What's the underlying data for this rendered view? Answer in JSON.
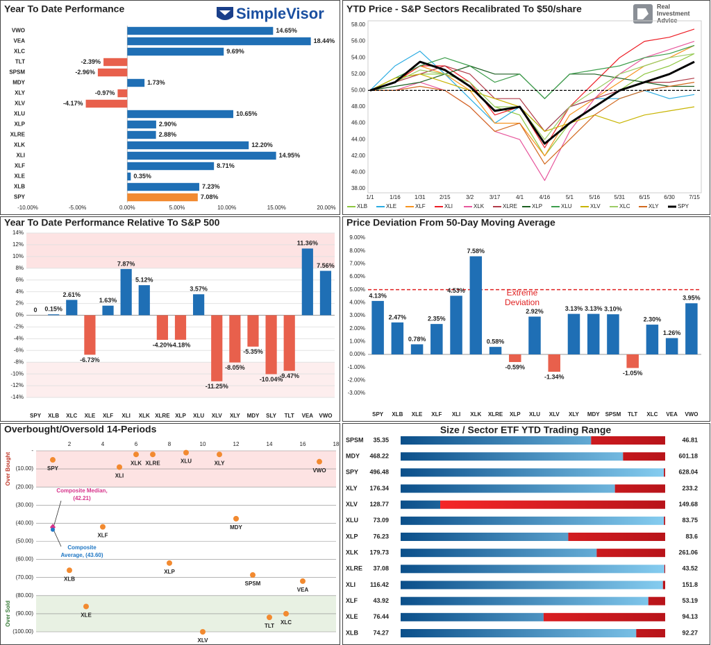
{
  "logos": {
    "simplevisor": "SimpleVisor",
    "ria": [
      "Real",
      "Investment",
      "Advice"
    ]
  },
  "chart_data": [
    {
      "type": "bar",
      "horizontal": true,
      "title": "Year To Date Performance",
      "categories": [
        "VWO",
        "VEA",
        "XLC",
        "TLT",
        "SPSM",
        "MDY",
        "XLY",
        "XLV",
        "XLU",
        "XLP",
        "XLRE",
        "XLK",
        "XLI",
        "XLF",
        "XLE",
        "XLB",
        "SPY"
      ],
      "values": [
        14.65,
        18.44,
        9.69,
        -2.39,
        -2.96,
        1.73,
        -0.97,
        -4.17,
        10.65,
        2.9,
        2.88,
        12.2,
        14.95,
        8.71,
        0.35,
        7.23,
        7.08
      ],
      "value_labels": [
        "14.65%",
        "18.44%",
        "9.69%",
        "-2.39%",
        "-2.96%",
        "1.73%",
        "-0.97%",
        "-4.17%",
        "10.65%",
        "2.90%",
        "2.88%",
        "12.20%",
        "14.95%",
        "8.71%",
        "0.35%",
        "7.23%",
        "7.08%"
      ],
      "colors": [
        "#1f6fb5",
        "#1f6fb5",
        "#1f6fb5",
        "#e8604c",
        "#e8604c",
        "#1f6fb5",
        "#e8604c",
        "#e8604c",
        "#1f6fb5",
        "#1f6fb5",
        "#1f6fb5",
        "#1f6fb5",
        "#1f6fb5",
        "#1f6fb5",
        "#1f6fb5",
        "#1f6fb5",
        "#f28a30"
      ],
      "xlim": [
        -10,
        20
      ],
      "xticks": [
        {
          "value": -10,
          "label": "-10.00%"
        },
        {
          "value": -5,
          "label": "-5.00%"
        },
        {
          "value": 0,
          "label": "0.00%"
        },
        {
          "value": 5,
          "label": "5.00%"
        },
        {
          "value": 10,
          "label": "10.00%"
        },
        {
          "value": 15,
          "label": "15.00%"
        },
        {
          "value": 20,
          "label": "20.00%"
        }
      ],
      "grid": false
    },
    {
      "type": "line",
      "title": "YTD Price - S&P Sectors Recalibrated To $50/share",
      "categories": [
        "1/1",
        "1/16",
        "1/31",
        "2/15",
        "3/2",
        "3/17",
        "4/1",
        "4/16",
        "5/1",
        "5/16",
        "5/31",
        "6/15",
        "6/30",
        "7/15"
      ],
      "ylim": [
        38,
        58
      ],
      "yticks": [
        {
          "value": 38,
          "label": "38.00"
        },
        {
          "value": 40,
          "label": "40.00"
        },
        {
          "value": 42,
          "label": "42.00"
        },
        {
          "value": 44,
          "label": "44.00"
        },
        {
          "value": 46,
          "label": "46.00"
        },
        {
          "value": 48,
          "label": "48.00"
        },
        {
          "value": 50,
          "label": "50.00"
        },
        {
          "value": 52,
          "label": "52.00"
        },
        {
          "value": 54,
          "label": "54.00"
        },
        {
          "value": 56,
          "label": "56.00"
        },
        {
          "value": 58,
          "label": "58.00"
        }
      ],
      "ref_line": 50,
      "grid": false,
      "series": [
        {
          "name": "XLB",
          "color": "#8dc63f",
          "width": 1.2,
          "values": [
            50,
            51.5,
            52,
            52,
            51,
            48,
            47,
            42,
            46,
            48,
            50,
            52,
            53,
            54.5
          ]
        },
        {
          "name": "XLE",
          "color": "#29abe2",
          "width": 1.2,
          "values": [
            50,
            53,
            54.8,
            52,
            49,
            46,
            48,
            45,
            48,
            49,
            49,
            50,
            49,
            49.5
          ]
        },
        {
          "name": "XLF",
          "color": "#f7931e",
          "width": 1.2,
          "values": [
            50,
            51,
            53,
            52,
            50,
            46,
            46,
            42,
            47,
            49,
            51,
            53,
            54,
            55.5
          ]
        },
        {
          "name": "XLI",
          "color": "#ed1c24",
          "width": 1.2,
          "values": [
            50,
            51,
            53,
            53,
            51,
            47,
            48,
            43,
            48,
            51,
            54,
            56,
            56.5,
            57.5
          ]
        },
        {
          "name": "XLK",
          "color": "#e7569c",
          "width": 1.2,
          "values": [
            50,
            50,
            51,
            50,
            48,
            45,
            44,
            39,
            45,
            49,
            52,
            54,
            55,
            56
          ]
        },
        {
          "name": "XLRE",
          "color": "#b03a48",
          "width": 1.2,
          "values": [
            50,
            51,
            52,
            53,
            52,
            49,
            49,
            45,
            48,
            49,
            50,
            51,
            51,
            51.5
          ]
        },
        {
          "name": "XLP",
          "color": "#1b5e20",
          "width": 1.2,
          "values": [
            50,
            50.5,
            51,
            52,
            53,
            52,
            52,
            49,
            52,
            52,
            51.5,
            51,
            50.5,
            50.5
          ]
        },
        {
          "name": "XLU",
          "color": "#3c9d4b",
          "width": 1.2,
          "values": [
            50,
            51.5,
            53,
            54,
            53,
            51,
            52,
            49,
            52,
            52.5,
            53,
            54,
            54.5,
            55.5
          ]
        },
        {
          "name": "XLV",
          "color": "#c8b400",
          "width": 1.2,
          "values": [
            50,
            51.5,
            52,
            51,
            50,
            49,
            48,
            45,
            46,
            47,
            46,
            47,
            47.5,
            48
          ]
        },
        {
          "name": "XLC",
          "color": "#9ccc65",
          "width": 1.2,
          "values": [
            50,
            51,
            52.5,
            52,
            51,
            48,
            48,
            44,
            48,
            50,
            52,
            53,
            54,
            54.5
          ]
        },
        {
          "name": "XLY",
          "color": "#d2691e",
          "width": 1.2,
          "values": [
            50,
            50,
            50.5,
            50,
            48,
            45,
            46,
            41,
            44,
            47,
            49,
            50,
            50.5,
            51
          ]
        },
        {
          "name": "SPY",
          "color": "#000000",
          "width": 3,
          "values": [
            50,
            51,
            53.5,
            52.5,
            50.5,
            47.5,
            48,
            43.5,
            46,
            48,
            50,
            51,
            52,
            53.5
          ]
        }
      ]
    },
    {
      "type": "bar",
      "title": "Year To Date Performance Relative To S&P 500",
      "categories": [
        "SPY",
        "XLB",
        "XLC",
        "XLE",
        "XLF",
        "XLI",
        "XLK",
        "XLRE",
        "XLP",
        "XLU",
        "XLV",
        "XLY",
        "MDY",
        "SLY",
        "TLT",
        "VEA",
        "VWO"
      ],
      "values": [
        0,
        0.15,
        2.61,
        -6.73,
        1.63,
        7.87,
        5.12,
        -4.2,
        -4.18,
        3.57,
        -11.25,
        -8.05,
        -5.35,
        -10.04,
        -9.47,
        11.36,
        7.56
      ],
      "value_labels": [
        "0",
        "0.15%",
        "2.61%",
        "-6.73%",
        "1.63%",
        "7.87%",
        "5.12%",
        "-4.20%",
        "-4.18%",
        "3.57%",
        "-11.25%",
        "-8.05%",
        "-5.35%",
        "-10.04%",
        "-9.47%",
        "11.36%",
        "7.56%"
      ],
      "color": "#1f6fb5",
      "negative_color": "#e8604c",
      "ylim": [
        -14,
        14
      ],
      "yticks": [
        {
          "value": -14,
          "label": "-14%"
        },
        {
          "value": -12,
          "label": "-12%"
        },
        {
          "value": -10,
          "label": "-10%"
        },
        {
          "value": -8,
          "label": "-8%"
        },
        {
          "value": -6,
          "label": "-6%"
        },
        {
          "value": -4,
          "label": "-4%"
        },
        {
          "value": -2,
          "label": "-2%"
        },
        {
          "value": 0,
          "label": "0%"
        },
        {
          "value": 2,
          "label": "2%"
        },
        {
          "value": 4,
          "label": "4%"
        },
        {
          "value": 6,
          "label": "6%"
        },
        {
          "value": 8,
          "label": "8%"
        },
        {
          "value": 10,
          "label": "10%"
        },
        {
          "value": 12,
          "label": "12%"
        },
        {
          "value": 14,
          "label": "14%"
        }
      ],
      "bands": [
        {
          "from": 8,
          "to": 14,
          "color": "#fde3e3"
        },
        {
          "from": -8,
          "to": -14,
          "color": "#fdeeee"
        }
      ],
      "grid": true
    },
    {
      "type": "bar",
      "title": "Price Deviation From 50-Day Moving Average",
      "categories": [
        "SPY",
        "XLB",
        "XLE",
        "XLF",
        "XLI",
        "XLK",
        "XLRE",
        "XLP",
        "XLU",
        "XLV",
        "XLY",
        "MDY",
        "SPSM",
        "TLT",
        "XLC",
        "VEA",
        "VWO"
      ],
      "values": [
        4.13,
        2.47,
        0.78,
        2.35,
        4.53,
        7.58,
        0.58,
        -0.59,
        2.92,
        -1.34,
        3.13,
        3.13,
        3.1,
        -1.05,
        2.3,
        1.26,
        3.95
      ],
      "value_labels": [
        "4.13%",
        "2.47%",
        "0.78%",
        "2.35%",
        "4.53%",
        "7.58%",
        "0.58%",
        "-0.59%",
        "2.92%",
        "-1.34%",
        "3.13%",
        "3.13%",
        "3.10%",
        "-1.05%",
        "2.30%",
        "1.26%",
        "3.95%"
      ],
      "color": "#1f6fb5",
      "negative_color": "#e8604c",
      "ylim": [
        -3,
        9
      ],
      "yticks": [
        {
          "value": -3,
          "label": "-3.00%"
        },
        {
          "value": -2,
          "label": "-2.00%"
        },
        {
          "value": -1,
          "label": "-1.00%"
        },
        {
          "value": 0,
          "label": "0.00%"
        },
        {
          "value": 1,
          "label": "1.00%"
        },
        {
          "value": 2,
          "label": "2.00%"
        },
        {
          "value": 3,
          "label": "3.00%"
        },
        {
          "value": 4,
          "label": "4.00%"
        },
        {
          "value": 5,
          "label": "5.00%"
        },
        {
          "value": 6,
          "label": "6.00%"
        },
        {
          "value": 7,
          "label": "7.00%"
        },
        {
          "value": 8,
          "label": "8.00%"
        },
        {
          "value": 9,
          "label": "9.00%"
        }
      ],
      "ref_line": 5,
      "ref_color": "#e02020",
      "annotation": [
        "Extreme",
        "Deviation"
      ],
      "grid": false
    },
    {
      "type": "scatter",
      "title": "Overbought/Oversold 14-Periods",
      "labels": [
        "SPY",
        "XLI",
        "XLK",
        "XLRE",
        "XLU",
        "XLY",
        "VWO",
        "MDY",
        "XLF",
        "XLB",
        "XLP",
        "SPSM",
        "VEA",
        "XLE",
        "TLT",
        "XLC",
        "XLV"
      ],
      "x": [
        1,
        5,
        6,
        7,
        9,
        11,
        17,
        12,
        4,
        2,
        8,
        13,
        16,
        3,
        14,
        15,
        10
      ],
      "y": [
        -5,
        -9,
        -2,
        -2,
        -1,
        -2,
        -6,
        -37.5,
        -42,
        -66,
        -62,
        -68.6,
        -72,
        -86,
        -92,
        -90,
        -100
      ],
      "color": "#f28a30",
      "xlim": [
        0,
        18
      ],
      "xticks": [
        2,
        4,
        6,
        8,
        10,
        12,
        14,
        16,
        18
      ],
      "ylim": [
        -100,
        0
      ],
      "yticks": [
        {
          "value": 0,
          "label": "-"
        },
        {
          "value": -10,
          "label": "(10.00)"
        },
        {
          "value": -20,
          "label": "(20.00)"
        },
        {
          "value": -30,
          "label": "(30.00)"
        },
        {
          "value": -40,
          "label": "(40.00)"
        },
        {
          "value": -50,
          "label": "(50.00)"
        },
        {
          "value": -60,
          "label": "(60.00)"
        },
        {
          "value": -70,
          "label": "(70.00)"
        },
        {
          "value": -80,
          "label": "(80.00)"
        },
        {
          "value": -90,
          "label": "(90.00)"
        },
        {
          "value": -100,
          "label": "(100.00)"
        }
      ],
      "bands": [
        {
          "from": 0,
          "to": -20,
          "color": "#fde3e3",
          "label": "Over Bought",
          "label_color": "#c0392b"
        },
        {
          "from": -80,
          "to": -100,
          "color": "#e8f1e3",
          "label": "Over Sold",
          "label_color": "#3a7d3a"
        }
      ],
      "composites": [
        {
          "x": 1,
          "y": -42.21,
          "color": "#d6338a",
          "label": [
            "Composite Median,",
            "(42.21)"
          ]
        },
        {
          "x": 1,
          "y": -43.6,
          "color": "#1f77c4",
          "label": [
            "Composite",
            "Average, (43.60)"
          ]
        }
      ],
      "grid": true
    },
    {
      "type": "range",
      "title": "Size / Sector ETF YTD Trading Range",
      "categories": [
        "SPSM",
        "MDY",
        "SPY",
        "XLY",
        "XLV",
        "XLU",
        "XLP",
        "XLK",
        "XLRE",
        "XLI",
        "XLF",
        "XLE",
        "XLB"
      ],
      "low": [
        35.35,
        468.22,
        496.48,
        176.34,
        128.77,
        73.09,
        76.23,
        179.73,
        37.08,
        116.42,
        43.92,
        76.44,
        74.27
      ],
      "high": [
        46.81,
        601.18,
        628.04,
        233.2,
        149.68,
        83.75,
        83.6,
        261.06,
        43.52,
        151.8,
        53.19,
        94.13,
        92.27
      ],
      "values": [
        43.6,
        580,
        627.4,
        222.4,
        131.9,
        83.7,
        80.9,
        240,
        43.5,
        151.5,
        52.6,
        86.0,
        90.3
      ]
    }
  ]
}
